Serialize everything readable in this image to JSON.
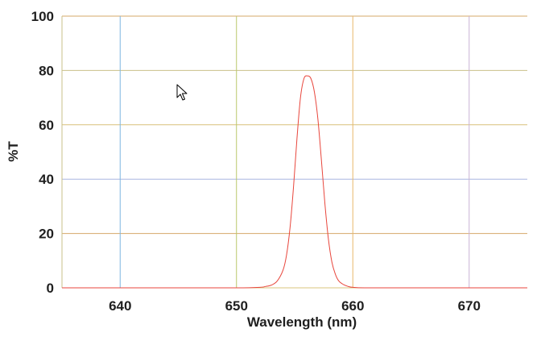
{
  "chart_data": {
    "type": "line",
    "xlabel": "Wavelength (nm)",
    "ylabel": "%T",
    "xlim": [
      635,
      675
    ],
    "ylim": [
      0,
      100
    ],
    "x_ticks": [
      "640",
      "650",
      "660",
      "670"
    ],
    "y_ticks": [
      "0",
      "20",
      "40",
      "60",
      "80",
      "100"
    ],
    "grid": true,
    "colors": {
      "curve": "#e8463c",
      "grid_vertical": [
        "#7fb6e0",
        "#b9c86a",
        "#e8b86a",
        "#c9b3d6"
      ],
      "grid_horizontal": [
        "#c9c08a",
        "#d6a86a",
        "#a9b6e0",
        "#d8c07a"
      ],
      "axis_line": "#d9c47e"
    },
    "series": [
      {
        "x": [
          635,
          645,
          650,
          652,
          652.5,
          653,
          653.5,
          654,
          654.3,
          654.6,
          654.9,
          655.2,
          655.5,
          655.8,
          656.1,
          656.4,
          656.7,
          657.0,
          657.3,
          657.6,
          657.9,
          658.2,
          658.5,
          658.8,
          659.2,
          659.6,
          660.0,
          661.0,
          663.0,
          668.0,
          675.0
        ],
        "y": [
          0,
          0,
          0,
          0.2,
          0.5,
          1.0,
          2.5,
          6.5,
          12.0,
          22.0,
          37.0,
          55.0,
          70.0,
          77.0,
          78.0,
          77.0,
          72.0,
          62.0,
          47.0,
          31.0,
          18.0,
          9.5,
          5.0,
          2.5,
          1.2,
          0.5,
          0.2,
          0,
          0,
          0,
          0
        ]
      }
    ]
  }
}
